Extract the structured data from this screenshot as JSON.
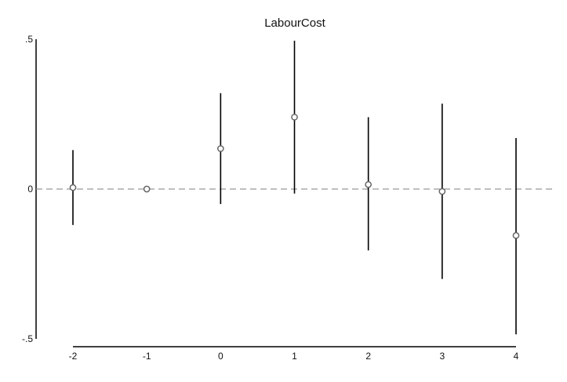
{
  "chart_data": {
    "type": "scatter",
    "title": "LabourCost",
    "xlabel": "",
    "ylabel": "",
    "x": [
      -2,
      -1,
      0,
      1,
      2,
      3,
      4
    ],
    "values": [
      0.005,
      0.0,
      0.135,
      0.24,
      0.015,
      -0.008,
      -0.155
    ],
    "ci_lower": [
      -0.12,
      0.0,
      -0.05,
      -0.015,
      -0.205,
      -0.3,
      -0.485
    ],
    "ci_upper": [
      0.13,
      0.0,
      0.32,
      0.495,
      0.24,
      0.285,
      0.17
    ],
    "xlim": [
      -2,
      4
    ],
    "ylim": [
      -0.5,
      0.5
    ],
    "x_ticks": [
      -2,
      -1,
      0,
      1,
      2,
      3,
      4
    ],
    "x_tick_labels": [
      "-2",
      "-1",
      "0",
      "1",
      "2",
      "3",
      "4"
    ],
    "y_ticks": [
      0.5,
      0,
      -0.5
    ],
    "y_tick_labels": [
      ".5",
      "0",
      "-.5"
    ],
    "reference_line": 0,
    "grid": false,
    "legend": "none",
    "colors": {
      "marker": "#666666",
      "error_bar": "#000000",
      "reference_line": "#999999",
      "axis": "#000000"
    }
  }
}
